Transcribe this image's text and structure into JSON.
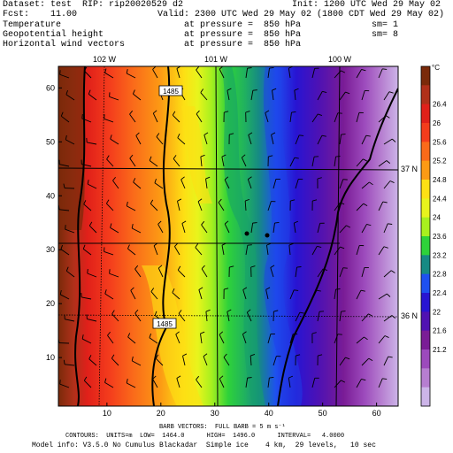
{
  "header": {
    "line1_left": "Dataset: test  RIP: rip20020529 d2",
    "line1_right": "Init: 1200 UTC Wed 29 May 02",
    "line2_left": "Fcst:    11.00",
    "line2_right": "Valid: 2300 UTC Wed 29 May 02 (1800 CDT Wed 29 May 02)",
    "rows": [
      {
        "field": "Temperature",
        "level": "at pressure =  850 hPa",
        "sm": "sm= 1"
      },
      {
        "field": "Geopotential height",
        "level": "at pressure =  850 hPa",
        "sm": "sm= 8"
      },
      {
        "field": "Horizontal wind vectors",
        "level": "at pressure =  850 hPa",
        "sm": ""
      }
    ]
  },
  "map": {
    "longitude_labels": [
      "102 W",
      "101 W",
      "100 W"
    ],
    "latitude_labels": [
      "37 N",
      "36 N"
    ],
    "contour_labels": [
      "1485",
      "1485"
    ],
    "x_ticks": [
      "10",
      "20",
      "30",
      "40",
      "50",
      "60"
    ],
    "y_ticks": [
      "10",
      "20",
      "30",
      "40",
      "50",
      "60"
    ]
  },
  "colorbar": {
    "unit": "°C",
    "labels": [
      "26.4",
      "26",
      "25.6",
      "25.2",
      "24.8",
      "24.4",
      "24",
      "23.6",
      "23.2",
      "22.8",
      "22.4",
      "22",
      "21.6",
      "21.2"
    ],
    "colors": [
      "#7a2a0a",
      "#b0301a",
      "#e0201a",
      "#f43c1c",
      "#fa6a1a",
      "#fc9a14",
      "#fde014",
      "#e8f41c",
      "#a8f01e",
      "#2ed23a",
      "#168a84",
      "#1e50f0",
      "#2814d2",
      "#5012b2",
      "#7a1c96",
      "#9c4abc",
      "#b67ed0",
      "#ccb4e8"
    ]
  },
  "footer": {
    "line1": "BARB VECTORS:  FULL BARB = 5 m s⁻¹",
    "line2": "CONTOURS:  UNITS=m  LOW=  1464.0      HIGH=  1496.0      INTERVAL=   4.0000",
    "line3": "Model info: V3.5.0 No Cumulus Blackadar  Simple ice    4 km,  29 levels,   10 sec"
  }
}
